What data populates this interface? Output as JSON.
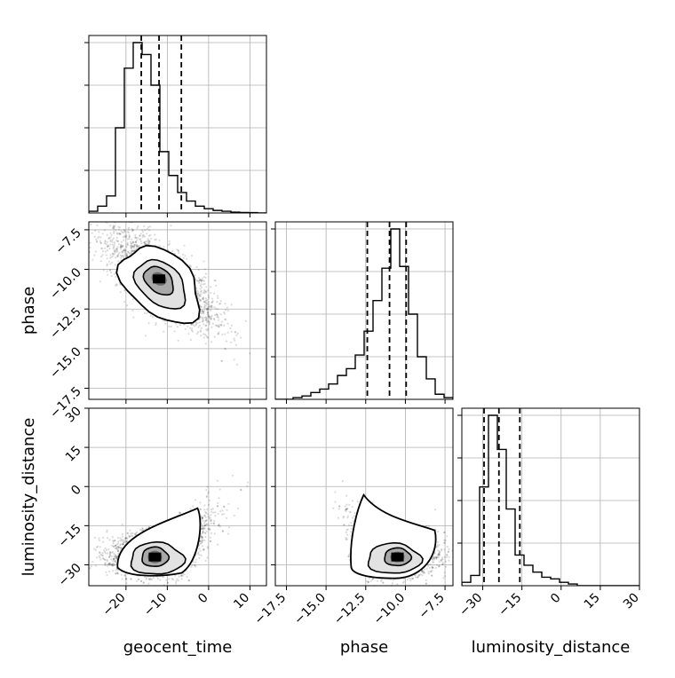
{
  "chart_data": {
    "type": "corner",
    "parameters": [
      "geocent_time",
      "phase",
      "luminosity_distance"
    ],
    "axis_labels": {
      "x": [
        "geocent_time",
        "phase",
        "luminosity_distance"
      ],
      "y_row1": "phase",
      "y_row2": "luminosity_distance"
    },
    "ranges": {
      "geocent_time": [
        -29,
        14
      ],
      "phase": [
        -18.2,
        -7.0
      ],
      "luminosity_distance": [
        -38,
        30
      ]
    },
    "ticks": {
      "geocent_time": [
        {
          "v": -20,
          "label": "−20"
        },
        {
          "v": -10,
          "label": "−10"
        },
        {
          "v": 0,
          "label": "0"
        },
        {
          "v": 10,
          "label": "10"
        }
      ],
      "phase": [
        {
          "v": -17.5,
          "label": "−17.5"
        },
        {
          "v": -15.0,
          "label": "−15.0"
        },
        {
          "v": -12.5,
          "label": "−12.5"
        },
        {
          "v": -10.0,
          "label": "−10.0"
        },
        {
          "v": -7.5,
          "label": "−7.5"
        }
      ],
      "luminosity_distance": [
        {
          "v": -30,
          "label": "−30"
        },
        {
          "v": -15,
          "label": "−15"
        },
        {
          "v": 0,
          "label": "0"
        },
        {
          "v": 15,
          "label": "15"
        },
        {
          "v": 30,
          "label": "30"
        }
      ]
    },
    "quantiles": {
      "geocent_time": [
        -16.3,
        -12.0,
        -6.6
      ],
      "phase": [
        -12.4,
        -11.0,
        -9.95
      ],
      "luminosity_distance": [
        -29.5,
        -23.8,
        -15.8
      ]
    },
    "histograms": {
      "geocent_time": {
        "edges": [
          -29,
          -26.85,
          -24.7,
          -22.55,
          -20.4,
          -18.25,
          -16.1,
          -13.95,
          -11.8,
          -9.65,
          -7.5,
          -5.35,
          -3.2,
          -1.05,
          1.1,
          3.25,
          5.4,
          7.55,
          9.7,
          11.85,
          14
        ],
        "counts": [
          1,
          4,
          10,
          50,
          85,
          100,
          93,
          75,
          36,
          22,
          12,
          7,
          4,
          2.5,
          1.5,
          1,
          0.5,
          0.3,
          0.2,
          0
        ]
      },
      "phase": {
        "edges": [
          -18.2,
          -17.64,
          -17.08,
          -16.52,
          -15.96,
          -15.4,
          -14.84,
          -14.28,
          -13.72,
          -13.16,
          -12.6,
          -12.04,
          -11.48,
          -10.92,
          -10.36,
          -9.8,
          -9.24,
          -8.68,
          -8.12,
          -7.56,
          -7.0
        ],
        "counts": [
          0,
          0,
          1,
          2,
          4,
          6,
          9,
          14,
          18,
          26,
          40,
          58,
          77,
          100,
          78,
          50,
          25,
          12,
          3,
          1
        ]
      },
      "luminosity_distance": {
        "edges": [
          -38,
          -34.6,
          -31.2,
          -27.8,
          -24.4,
          -21,
          -17.6,
          -14.2,
          -10.8,
          -7.4,
          -4,
          -0.6,
          2.8,
          6.2,
          9.6,
          13,
          16.4,
          19.8,
          23.2,
          26.6,
          30
        ],
        "counts": [
          2,
          6,
          58,
          100,
          80,
          45,
          18,
          12,
          8,
          5,
          4,
          2,
          1,
          0,
          0,
          0,
          0,
          0,
          0,
          0
        ]
      }
    },
    "density_peaks": {
      "geocent_time_vs_phase": {
        "x": -12,
        "y": -10.6
      },
      "geocent_time_vs_luminosity_distance": {
        "x": -13,
        "y": -27
      },
      "phase_vs_luminosity_distance": {
        "x": -10.5,
        "y": -27
      }
    },
    "grid": true
  }
}
